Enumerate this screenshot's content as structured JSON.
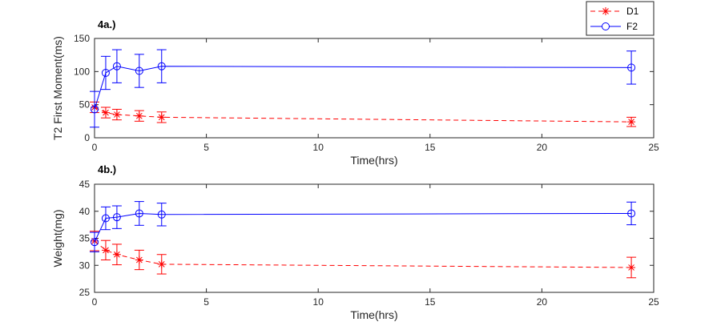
{
  "chart_data": [
    {
      "type": "line",
      "title": "4a.)",
      "xlabel": "Time(hrs)",
      "ylabel": "T2 First Moment(ms)",
      "xlim": [
        0,
        25
      ],
      "ylim": [
        0,
        150
      ],
      "xticks": [
        0,
        5,
        10,
        15,
        20,
        25
      ],
      "yticks": [
        0,
        50,
        100,
        150
      ],
      "grid": false,
      "legend": "top-right",
      "series": [
        {
          "name": "D1",
          "color": "#ff0000",
          "linestyle": "dashed",
          "marker": "asterisk",
          "x": [
            0,
            0.5,
            1,
            2,
            3,
            24
          ],
          "y": [
            46,
            38,
            35,
            33,
            31,
            24
          ],
          "err": [
            8,
            8,
            8,
            8,
            8,
            7
          ]
        },
        {
          "name": "F2",
          "color": "#0000ff",
          "linestyle": "solid",
          "marker": "circle",
          "x": [
            0,
            0.5,
            1,
            2,
            3,
            24
          ],
          "y": [
            43,
            98,
            108,
            101,
            108,
            106
          ],
          "err": [
            27,
            25,
            25,
            25,
            25,
            25
          ]
        }
      ]
    },
    {
      "type": "line",
      "title": "4b.)",
      "xlabel": "Time(hrs)",
      "ylabel": "Weight(mg)",
      "xlim": [
        0,
        25
      ],
      "ylim": [
        25,
        45
      ],
      "xticks": [
        0,
        5,
        10,
        15,
        20,
        25
      ],
      "yticks": [
        25,
        30,
        35,
        40,
        45
      ],
      "grid": false,
      "series": [
        {
          "name": "D1",
          "color": "#ff0000",
          "linestyle": "dashed",
          "marker": "asterisk",
          "x": [
            0,
            0.5,
            1,
            2,
            3,
            24
          ],
          "y": [
            34.5,
            32.8,
            32.0,
            31.0,
            30.2,
            29.6
          ],
          "err": [
            1.8,
            1.8,
            1.9,
            1.8,
            1.8,
            1.9
          ]
        },
        {
          "name": "F2",
          "color": "#0000ff",
          "linestyle": "solid",
          "marker": "circle",
          "x": [
            0,
            0.5,
            1,
            2,
            3,
            24
          ],
          "y": [
            34.3,
            38.7,
            38.9,
            39.6,
            39.4,
            39.6
          ],
          "err": [
            1.8,
            2.1,
            2.1,
            2.2,
            2.1,
            2.1
          ]
        }
      ]
    }
  ]
}
